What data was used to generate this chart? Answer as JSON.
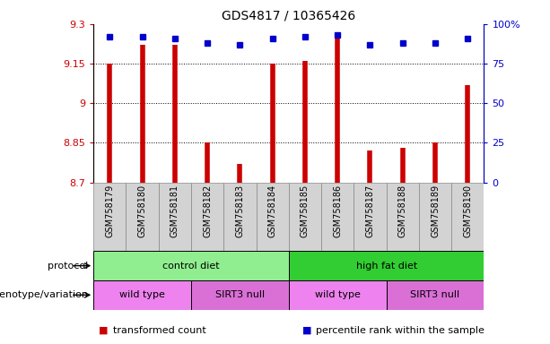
{
  "title": "GDS4817 / 10365426",
  "samples": [
    "GSM758179",
    "GSM758180",
    "GSM758181",
    "GSM758182",
    "GSM758183",
    "GSM758184",
    "GSM758185",
    "GSM758186",
    "GSM758187",
    "GSM758188",
    "GSM758189",
    "GSM758190"
  ],
  "bar_values": [
    9.15,
    9.22,
    9.22,
    8.85,
    8.77,
    9.15,
    9.16,
    9.26,
    8.82,
    8.83,
    8.85,
    9.07
  ],
  "bar_base": 8.7,
  "percentile_values": [
    92,
    92,
    91,
    88,
    87,
    91,
    92,
    93,
    87,
    88,
    88,
    91
  ],
  "percentile_scale": [
    0,
    25,
    50,
    75,
    100
  ],
  "ylim": [
    8.7,
    9.3
  ],
  "yticks": [
    8.7,
    8.85,
    9.0,
    9.15,
    9.3
  ],
  "ytick_labels": [
    "8.7",
    "8.85",
    "9",
    "9.15",
    "9.3"
  ],
  "grid_values": [
    9.15,
    9.0,
    8.85
  ],
  "bar_color": "#cc0000",
  "percentile_color": "#0000cc",
  "protocol_labels": [
    {
      "text": "control diet",
      "start": 0,
      "end": 5,
      "color": "#90ee90"
    },
    {
      "text": "high fat diet",
      "start": 6,
      "end": 11,
      "color": "#32cd32"
    }
  ],
  "genotype_labels": [
    {
      "text": "wild type",
      "start": 0,
      "end": 2,
      "color": "#ee82ee"
    },
    {
      "text": "SIRT3 null",
      "start": 3,
      "end": 5,
      "color": "#da70d6"
    },
    {
      "text": "wild type",
      "start": 6,
      "end": 8,
      "color": "#ee82ee"
    },
    {
      "text": "SIRT3 null",
      "start": 9,
      "end": 11,
      "color": "#da70d6"
    }
  ],
  "legend_items": [
    {
      "label": "transformed count",
      "color": "#cc0000"
    },
    {
      "label": "percentile rank within the sample",
      "color": "#0000cc"
    }
  ],
  "protocol_row_label": "protocol",
  "genotype_row_label": "genotype/variation",
  "sample_box_color": "#d3d3d3",
  "sample_box_edge": "#888888"
}
